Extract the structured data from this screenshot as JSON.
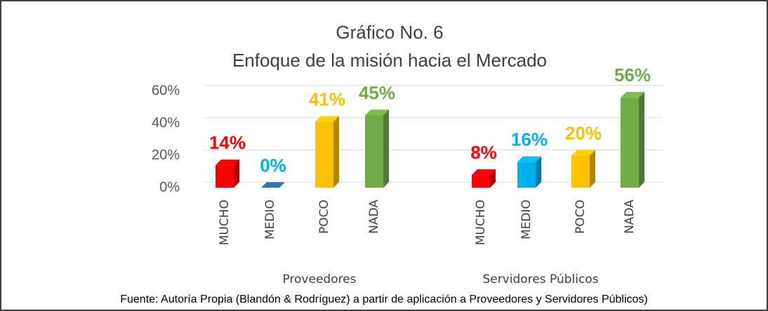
{
  "chart_data": {
    "type": "bar3d",
    "title": "Gráfico No. 6",
    "subtitle": "Enfoque de la misión hacia el Mercado",
    "source": "Fuente: Autoría Propia (Blandón & Rodríguez) a partir de aplicación a Proveedores y  Servidores Públicos)",
    "ylim": [
      0,
      60
    ],
    "yticks": [
      {
        "value": 0,
        "label": "0%"
      },
      {
        "value": 20,
        "label": "20%"
      },
      {
        "value": 40,
        "label": "40%"
      },
      {
        "value": 60,
        "label": "60%"
      }
    ],
    "grid": true,
    "groups": [
      {
        "name": "Proveedores",
        "categories": [
          "MUCHO",
          "MEDIO",
          "POCO",
          "NADA"
        ],
        "values": [
          14,
          0,
          41,
          45
        ],
        "value_labels": [
          "14%",
          "0%",
          "41%",
          "45%"
        ],
        "colors": [
          "#ff0000",
          "#00b0f0",
          "#ffc000",
          "#70ad47"
        ]
      },
      {
        "name": "Servidores Públicos",
        "categories": [
          "MUCHO",
          "MEDIO",
          "POCO",
          "NADA"
        ],
        "values": [
          8,
          16,
          20,
          56
        ],
        "value_labels": [
          "8%",
          "16%",
          "20%",
          "56%"
        ],
        "colors": [
          "#ff0000",
          "#00b0f0",
          "#ffc000",
          "#70ad47"
        ]
      }
    ]
  }
}
